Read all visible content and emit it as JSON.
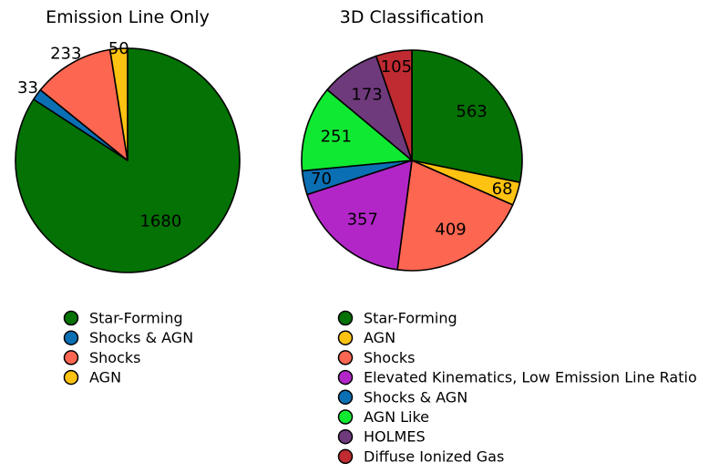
{
  "chart_data": [
    {
      "type": "pie",
      "title": "Emission Line Only",
      "slices": [
        {
          "label": "Star-Forming",
          "value": 1680,
          "color": "#047204"
        },
        {
          "label": "Shocks & AGN",
          "value": 33,
          "color": "#0b6fb4"
        },
        {
          "label": "Shocks",
          "value": 233,
          "color": "#fd6650"
        },
        {
          "label": "AGN",
          "value": 50,
          "color": "#fec210"
        }
      ]
    },
    {
      "type": "pie",
      "title": "3D Classification",
      "slices": [
        {
          "label": "Star-Forming",
          "value": 563,
          "color": "#047204"
        },
        {
          "label": "AGN",
          "value": 68,
          "color": "#fec210"
        },
        {
          "label": "Shocks",
          "value": 409,
          "color": "#fd6650"
        },
        {
          "label": "Elevated Kinematics, Low Emission Line Ratio",
          "value": 357,
          "color": "#b226c8"
        },
        {
          "label": "Shocks & AGN",
          "value": 70,
          "color": "#0b6fb4"
        },
        {
          "label": "AGN Like",
          "value": 251,
          "color": "#10e932"
        },
        {
          "label": "HOLMES",
          "value": 173,
          "color": "#6e3a7c"
        },
        {
          "label": "Diffuse Ionized Gas",
          "value": 105,
          "color": "#c02a31"
        }
      ]
    }
  ]
}
